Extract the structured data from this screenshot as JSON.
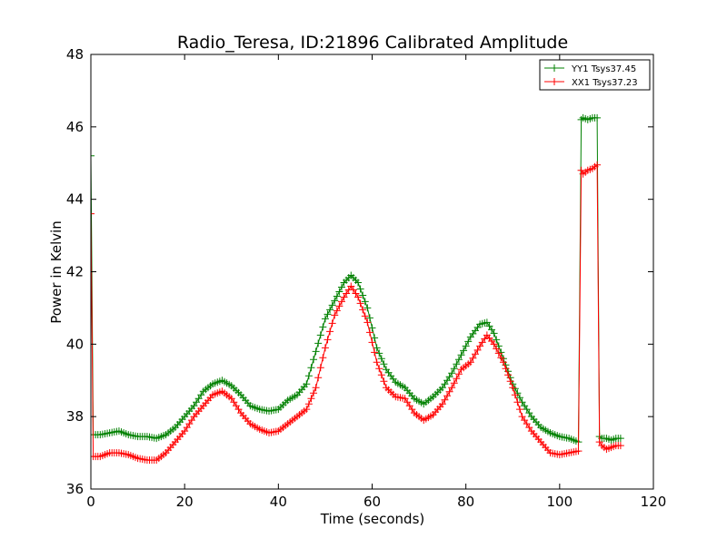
{
  "chart_data": {
    "type": "line",
    "title": "Radio_Teresa, ID:21896 Calibrated Amplitude",
    "xlabel": "Time (seconds)",
    "ylabel": "Power in Kelvin",
    "xlim": [
      0,
      120
    ],
    "ylim": [
      36,
      48
    ],
    "xticks": [
      0,
      20,
      40,
      60,
      80,
      100,
      120
    ],
    "yticks": [
      36,
      38,
      40,
      42,
      44,
      46,
      48
    ],
    "grid": false,
    "legend_position": "top-right",
    "marker": "+",
    "series": [
      {
        "name": "YY1 Tsys37.45",
        "color": "#008000",
        "x": [
          0,
          0.5,
          2,
          4,
          6,
          8,
          10,
          12,
          14,
          16,
          18,
          20,
          22,
          24,
          26,
          28,
          30,
          32,
          34,
          36,
          38,
          40,
          42,
          44,
          46,
          48,
          50,
          52,
          54,
          55.5,
          57,
          59,
          61,
          63,
          65,
          67,
          69,
          71,
          73,
          75,
          77,
          79,
          81,
          83,
          84.5,
          86,
          88,
          90,
          92,
          94,
          96,
          98,
          100,
          102,
          104,
          104.6,
          105,
          106,
          107,
          108,
          108.5,
          109,
          110,
          111,
          112,
          113
        ],
        "y": [
          45.2,
          37.5,
          37.5,
          37.55,
          37.6,
          37.5,
          37.45,
          37.45,
          37.4,
          37.5,
          37.7,
          38.0,
          38.3,
          38.7,
          38.9,
          39.0,
          38.85,
          38.6,
          38.3,
          38.2,
          38.15,
          38.2,
          38.45,
          38.6,
          38.9,
          39.8,
          40.7,
          41.2,
          41.7,
          41.9,
          41.7,
          41.0,
          39.9,
          39.3,
          38.95,
          38.8,
          38.5,
          38.35,
          38.55,
          38.8,
          39.2,
          39.7,
          40.2,
          40.55,
          40.6,
          40.3,
          39.6,
          38.9,
          38.4,
          38.0,
          37.7,
          37.55,
          37.45,
          37.4,
          37.3,
          46.2,
          46.25,
          46.2,
          46.25,
          46.25,
          37.45,
          37.4,
          37.4,
          37.35,
          37.4,
          37.4
        ]
      },
      {
        "name": "XX1 Tsys37.23",
        "color": "#ff0000",
        "x": [
          0,
          0.5,
          2,
          4,
          6,
          8,
          10,
          12,
          14,
          16,
          18,
          20,
          22,
          24,
          26,
          28,
          30,
          32,
          34,
          36,
          38,
          40,
          42,
          44,
          46,
          48,
          50,
          52,
          54,
          55.5,
          57,
          59,
          61,
          63,
          65,
          67,
          69,
          71,
          73,
          75,
          77,
          79,
          81,
          83,
          84.5,
          86,
          88,
          90,
          92,
          94,
          96,
          98,
          100,
          102,
          104,
          104.6,
          105,
          106,
          107,
          108,
          108.5,
          109,
          110,
          111,
          112,
          113
        ],
        "y": [
          43.6,
          36.9,
          36.9,
          37.0,
          37.0,
          36.95,
          36.85,
          36.8,
          36.8,
          37.0,
          37.3,
          37.6,
          38.0,
          38.3,
          38.6,
          38.7,
          38.5,
          38.1,
          37.8,
          37.65,
          37.55,
          37.6,
          37.8,
          38.0,
          38.2,
          38.8,
          39.9,
          40.8,
          41.3,
          41.6,
          41.3,
          40.6,
          39.5,
          38.8,
          38.55,
          38.5,
          38.1,
          37.9,
          38.05,
          38.35,
          38.8,
          39.3,
          39.5,
          39.95,
          40.25,
          40.0,
          39.5,
          38.8,
          38.0,
          37.6,
          37.3,
          37.0,
          36.95,
          37.0,
          37.05,
          44.8,
          44.7,
          44.8,
          44.85,
          44.95,
          37.3,
          37.2,
          37.1,
          37.15,
          37.2,
          37.2
        ]
      }
    ]
  }
}
